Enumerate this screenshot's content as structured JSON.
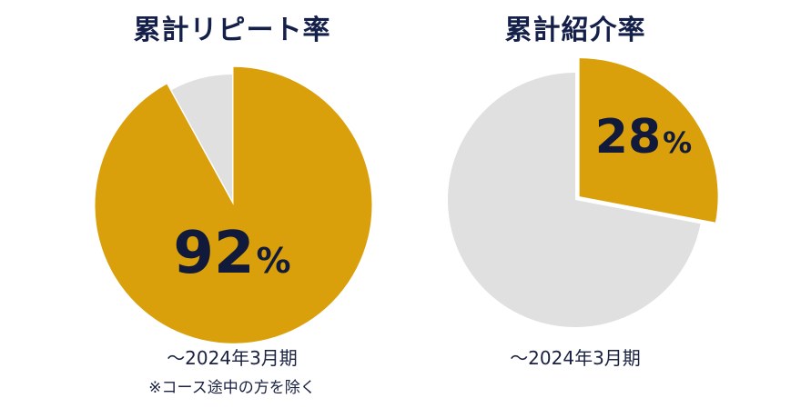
{
  "colors": {
    "accent": "#D9A00C",
    "rest": "#E0E0E0",
    "text": "#111A3A"
  },
  "chart_data": [
    {
      "type": "pie",
      "title": "累計リピート率",
      "slices": [
        {
          "label": "",
          "value": 92
        },
        {
          "label": "",
          "value": 8
        }
      ],
      "value_label": "92",
      "unit": "%",
      "period": "〜2024年3月期",
      "note": "※コース途中の方を除く"
    },
    {
      "type": "pie",
      "title": "累計紹介率",
      "slices": [
        {
          "label": "",
          "value": 28
        },
        {
          "label": "",
          "value": 72
        }
      ],
      "value_label": "28",
      "unit": "%",
      "period": "〜2024年3月期"
    }
  ]
}
